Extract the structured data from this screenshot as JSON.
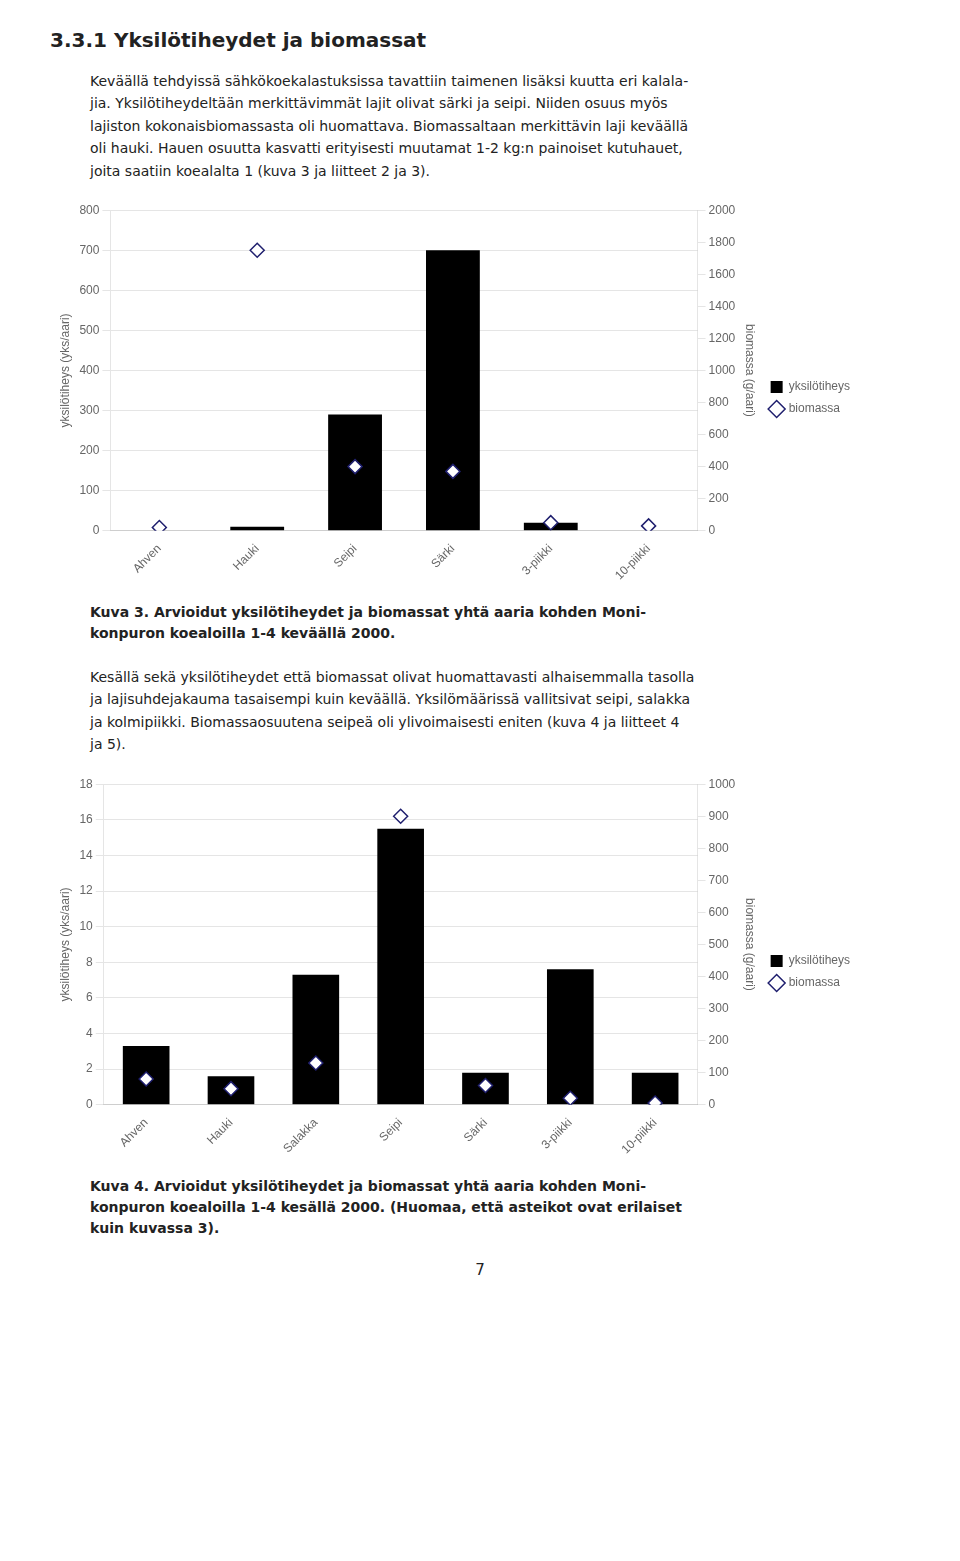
{
  "title": "3.3.1 Yksilötiheydet ja biomassat",
  "annotations": [
    "7"
  ],
  "chart_data": [
    {
      "type": "bar",
      "annotations": [
        "Keväällä tehdyissä sähkökoekalastuksissa tavattiin taimenen lisäksi kuutta eri kalala-\njia. Yksilötiheydeltään merkittävimmät lajit olivat särki ja seipi. Niiden osuus myös\nlajiston kokonaisbiomassasta oli huomattava. Biomassaltaan merkittävin laji keväällä\noli hauki. Hauen osuutta kasvatti erityisesti muutamat 1-2 kg:n painoiset kutuhauet,\njoita saatiin koealalta 1 (kuva 3 ja liitteet 2 ja 3)."
      ],
      "title": "Kuva 3.  Arvioidut yksilötiheydet ja biomassat yhtä aaria kohden Moni-\nkonpuron koealoilla 1-4 keväällä 2000.",
      "categories": [
        "Ahven",
        "Hauki",
        "Seipi",
        "Särki",
        "3-piikki",
        "10-piikki"
      ],
      "series": [
        {
          "name": "yksilötiheys",
          "type": "bar",
          "color": "#000000",
          "values": [
            0,
            10,
            290,
            700,
            20,
            0
          ]
        },
        {
          "name": "biomassa",
          "type": "scatter",
          "marker": "diamond",
          "color": "#1f1f6e",
          "axis": "y2",
          "values": [
            20,
            1750,
            400,
            370,
            50,
            30
          ]
        }
      ],
      "ylabel": "yksilötiheys (yks/aari)",
      "y2label": "biomassa (g/aari)",
      "ylim": [
        0,
        800
      ],
      "yticks": [
        0,
        100,
        200,
        300,
        400,
        500,
        600,
        700,
        800
      ],
      "y2lim": [
        0,
        2000
      ],
      "y2ticks": [
        0,
        200,
        400,
        600,
        800,
        1000,
        1200,
        1400,
        1600,
        1800,
        2000
      ],
      "grid": true,
      "legend": "right"
    },
    {
      "type": "bar",
      "annotations": [
        "Kesällä sekä yksilötiheydet että biomassat olivat huomattavasti alhaisemmalla tasolla\nja lajisuhdejakauma tasaisempi kuin keväällä. Yksilömäärissä vallitsivat seipi, salakka\nja kolmipiikki. Biomassaosuutena seipeä oli ylivoimaisesti eniten (kuva 4 ja liitteet 4\nja 5)."
      ],
      "title": "Kuva 4.  Arvioidut yksilötiheydet ja biomassat yhtä aaria kohden Moni-\nkonpuron koealoilla 1-4 kesällä 2000. (Huomaa, että asteikot ovat erilaiset\nkuin kuvassa 3).",
      "categories": [
        "Ahven",
        "Hauki",
        "Salakka",
        "Seipi",
        "Särki",
        "3-piikki",
        "10-piikki"
      ],
      "series": [
        {
          "name": "yksilötiheys",
          "type": "bar",
          "color": "#000000",
          "values": [
            3.3,
            1.6,
            7.3,
            15.5,
            1.8,
            7.6,
            1.8
          ]
        },
        {
          "name": "biomassa",
          "type": "scatter",
          "marker": "diamond",
          "color": "#1f1f6e",
          "axis": "y2",
          "values": [
            80,
            50,
            130,
            900,
            60,
            20,
            5
          ]
        }
      ],
      "ylabel": "yksilötiheys (yks/aari)",
      "y2label": "biomassa (g/aari)",
      "ylim": [
        0,
        18
      ],
      "yticks": [
        0,
        2,
        4,
        6,
        8,
        10,
        12,
        14,
        16,
        18
      ],
      "y2lim": [
        0,
        1000
      ],
      "y2ticks": [
        0,
        100,
        200,
        300,
        400,
        500,
        600,
        700,
        800,
        900,
        1000
      ],
      "grid": true,
      "legend": "right"
    }
  ]
}
